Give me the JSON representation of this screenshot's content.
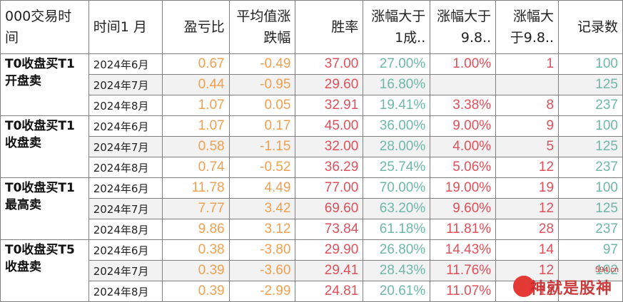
{
  "headers": [
    "000交易时间",
    "时间1 月",
    "盈亏比",
    "平均值涨跌幅",
    "胜率",
    "涨幅大于1成..",
    "涨幅大于9.8..",
    "涨幅大于9.8..",
    "记录数"
  ],
  "colors": {
    "ratio": "#f0a050",
    "avg": "#f0a050",
    "winrate": "#e0505a",
    "over1": "#6fb8a8",
    "over98pct": "#e0505a",
    "over98count": "#e0505a",
    "count": "#6fb8a8"
  },
  "groups": [
    {
      "label": "T0收盘买T1开盘卖",
      "rows": [
        {
          "date": "2024年6月",
          "ratio": "0.67",
          "avg": "-0.49",
          "winrate": "37.00",
          "over1": "27.00%",
          "over98pct": "1.00%",
          "over98count": "1",
          "count": "100"
        },
        {
          "date": "2024年7月",
          "ratio": "0.44",
          "avg": "-0.95",
          "winrate": "29.60",
          "over1": "16.80%",
          "over98pct": "",
          "over98count": "",
          "count": "125"
        },
        {
          "date": "2024年8月",
          "ratio": "1.07",
          "avg": "0.05",
          "winrate": "32.91",
          "over1": "19.41%",
          "over98pct": "3.38%",
          "over98count": "8",
          "count": "237"
        }
      ]
    },
    {
      "label": "T0收盘买T1收盘卖",
      "rows": [
        {
          "date": "2024年6月",
          "ratio": "1.07",
          "avg": "0.17",
          "winrate": "45.00",
          "over1": "36.00%",
          "over98pct": "9.00%",
          "over98count": "9",
          "count": "100"
        },
        {
          "date": "2024年7月",
          "ratio": "0.58",
          "avg": "-1.15",
          "winrate": "32.00",
          "over1": "28.00%",
          "over98pct": "4.00%",
          "over98count": "5",
          "count": "125"
        },
        {
          "date": "2024年8月",
          "ratio": "0.74",
          "avg": "-0.52",
          "winrate": "36.29",
          "over1": "25.74%",
          "over98pct": "5.06%",
          "over98count": "12",
          "count": "237"
        }
      ]
    },
    {
      "label": "T0收盘买T1最高卖",
      "rows": [
        {
          "date": "2024年6月",
          "ratio": "11.78",
          "avg": "4.49",
          "winrate": "77.00",
          "over1": "70.00%",
          "over98pct": "19.00%",
          "over98count": "19",
          "count": "100"
        },
        {
          "date": "2024年7月",
          "ratio": "7.77",
          "avg": "3.42",
          "winrate": "69.60",
          "over1": "63.20%",
          "over98pct": "9.60%",
          "over98count": "12",
          "count": "125"
        },
        {
          "date": "2024年8月",
          "ratio": "9.86",
          "avg": "3.12",
          "winrate": "73.84",
          "over1": "61.18%",
          "over98pct": "11.81%",
          "over98count": "28",
          "count": "237"
        }
      ]
    },
    {
      "label": "T0收盘买T5收盘卖",
      "rows": [
        {
          "date": "2024年6月",
          "ratio": "0.38",
          "avg": "-3.80",
          "winrate": "29.90",
          "over1": "26.80%",
          "over98pct": "14.43%",
          "over98count": "14",
          "count": "97"
        },
        {
          "date": "2024年7月",
          "ratio": "0.39",
          "avg": "-3.60",
          "winrate": "29.41",
          "over1": "28.43%",
          "over98pct": "11.76%",
          "over98count": "12",
          "count": "102"
        },
        {
          "date": "2024年8月",
          "ratio": "0.39",
          "avg": "-2.99",
          "winrate": "24.81",
          "over1": "20.61%",
          "over98pct": "11.07%",
          "over98count": "12",
          "count": ""
        }
      ]
    }
  ],
  "watermark": {
    "text": "神就是股神",
    "url": "594.cn"
  }
}
